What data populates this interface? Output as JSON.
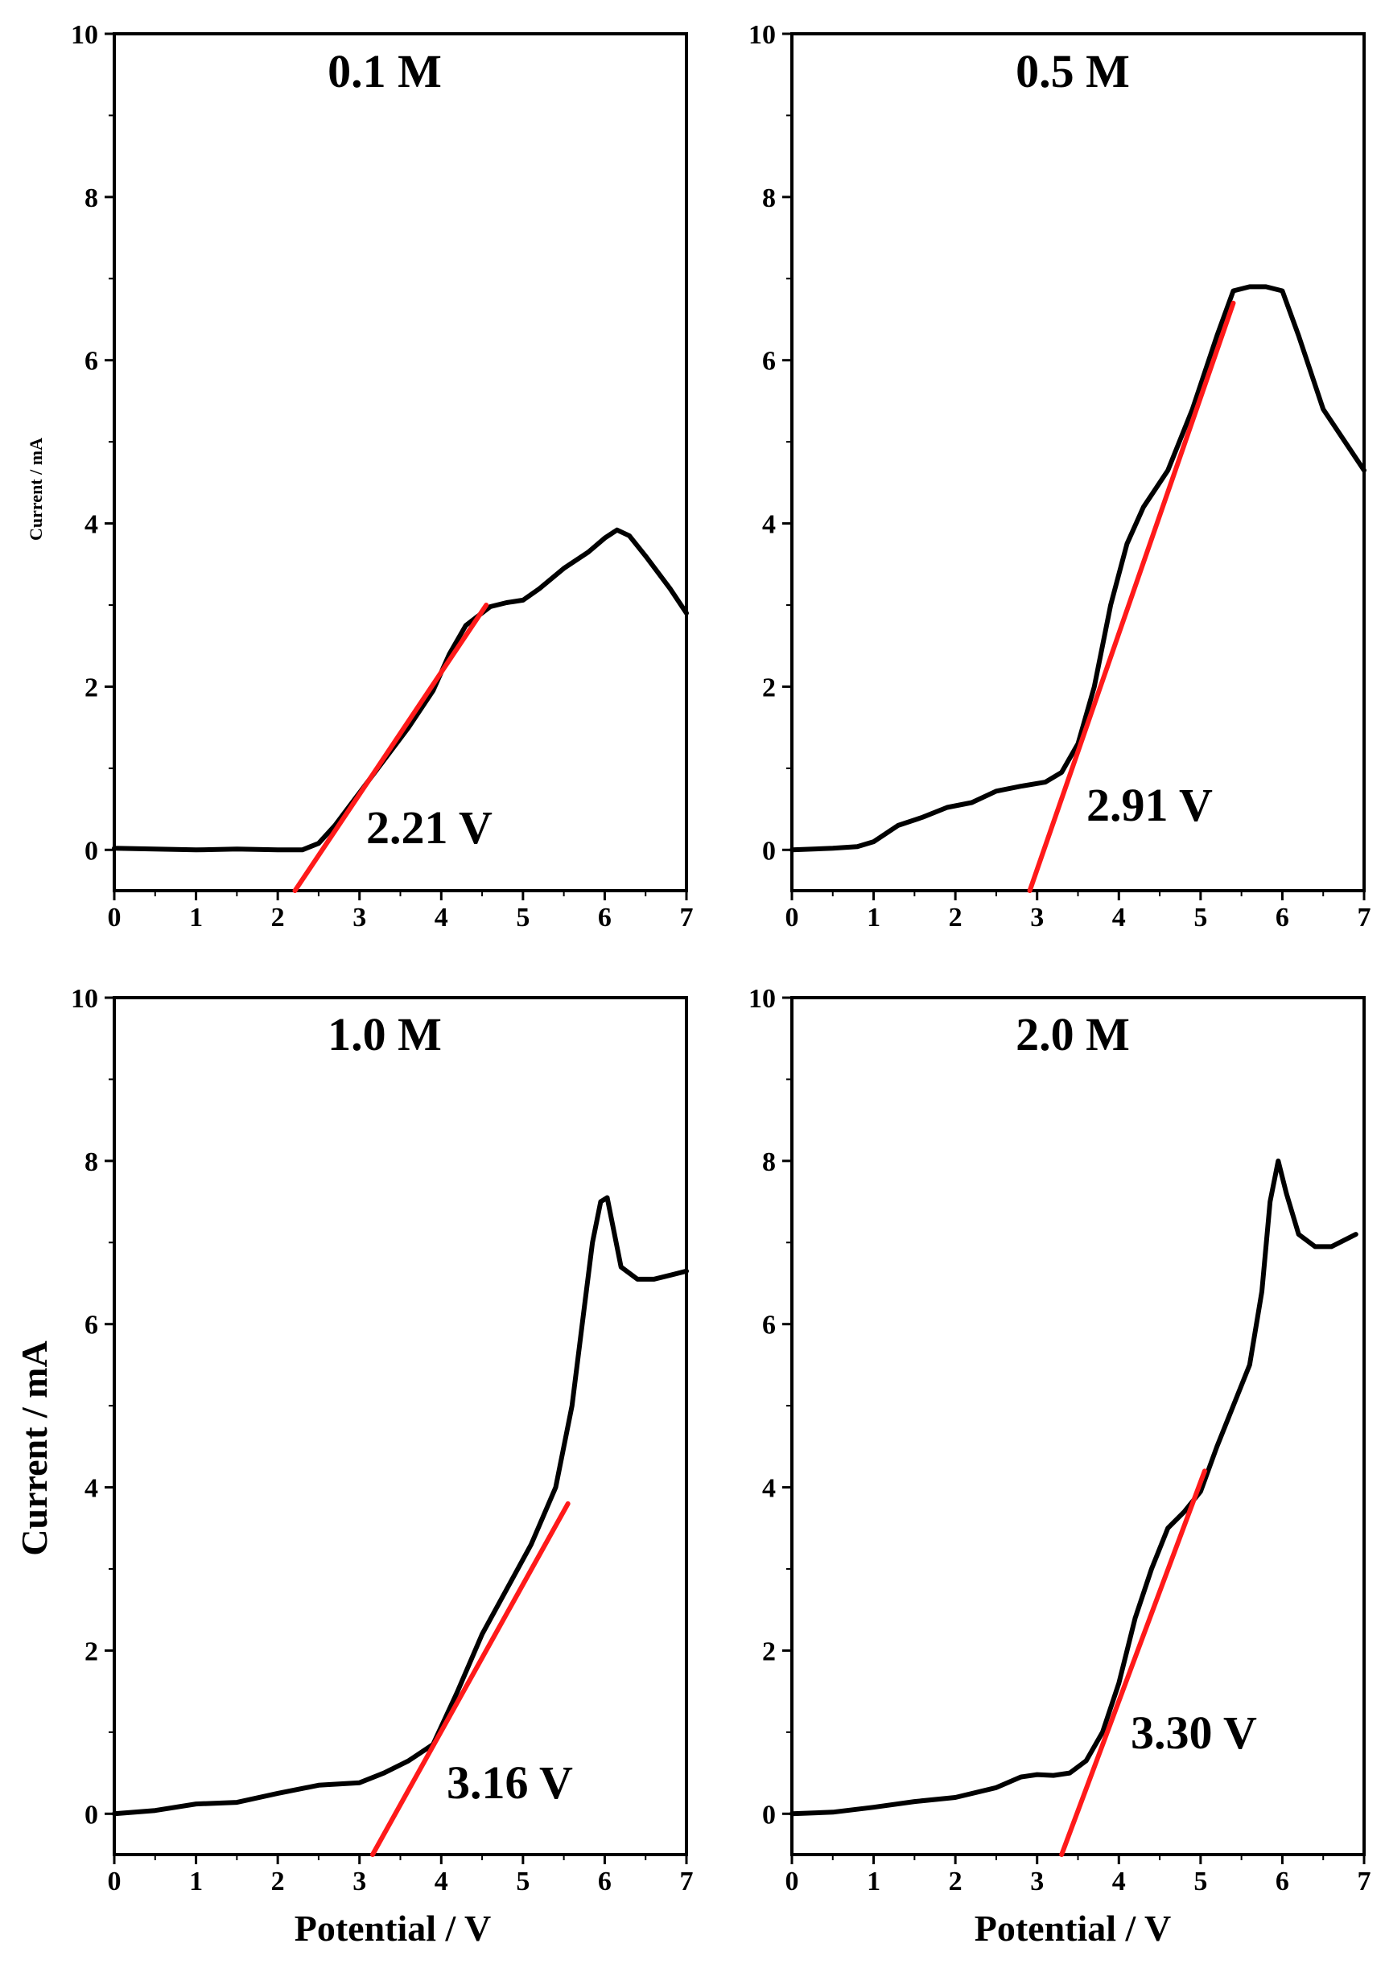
{
  "figure": {
    "xlabel": "Potential / V",
    "ylabel": "Current / mA",
    "ylabel_small": "Current / mA"
  },
  "colors": {
    "curve": "#000000",
    "fit": "#ff1a1a"
  },
  "chart_data": [
    {
      "type": "line",
      "title": "0.1 M",
      "annotation": "2.21 V",
      "xlim": [
        0,
        7
      ],
      "ylim": [
        -0.5,
        10
      ],
      "xticks": [
        "0",
        "1",
        "2",
        "3",
        "4",
        "5",
        "6",
        "7"
      ],
      "yticks": [
        "0",
        "2",
        "4",
        "6",
        "8",
        "10"
      ],
      "series": [
        {
          "name": "current",
          "x": [
            0,
            0.5,
            1,
            1.5,
            2,
            2.3,
            2.5,
            2.7,
            3,
            3.3,
            3.6,
            3.9,
            4.1,
            4.3,
            4.6,
            4.8,
            5.0,
            5.2,
            5.5,
            5.8,
            6.0,
            6.15,
            6.3,
            6.5,
            6.8,
            7.0
          ],
          "y": [
            0.02,
            0.01,
            0.0,
            0.01,
            0.0,
            0.0,
            0.08,
            0.3,
            0.7,
            1.1,
            1.5,
            1.95,
            2.4,
            2.75,
            2.98,
            3.03,
            3.06,
            3.2,
            3.45,
            3.65,
            3.82,
            3.92,
            3.85,
            3.6,
            3.2,
            2.9
          ]
        },
        {
          "name": "tangent",
          "x": [
            2.21,
            4.55
          ],
          "y": [
            -0.5,
            3.0
          ]
        }
      ]
    },
    {
      "type": "line",
      "title": "0.5 M",
      "annotation": "2.91 V",
      "xlim": [
        0,
        7
      ],
      "ylim": [
        -0.5,
        10
      ],
      "xticks": [
        "0",
        "1",
        "2",
        "3",
        "4",
        "5",
        "6",
        "7"
      ],
      "yticks": [
        "0",
        "2",
        "4",
        "6",
        "8",
        "10"
      ],
      "series": [
        {
          "name": "current",
          "x": [
            0,
            0.5,
            0.8,
            1.0,
            1.3,
            1.6,
            1.9,
            2.2,
            2.5,
            2.8,
            3.1,
            3.3,
            3.5,
            3.7,
            3.9,
            4.1,
            4.3,
            4.6,
            4.9,
            5.2,
            5.4,
            5.6,
            5.8,
            6.0,
            6.2,
            6.5,
            6.8,
            7.0
          ],
          "y": [
            0.0,
            0.02,
            0.04,
            0.1,
            0.3,
            0.4,
            0.52,
            0.58,
            0.72,
            0.78,
            0.83,
            0.95,
            1.3,
            2.0,
            3.0,
            3.75,
            4.2,
            4.65,
            5.4,
            6.3,
            6.85,
            6.9,
            6.9,
            6.85,
            6.3,
            5.4,
            4.95,
            4.65
          ]
        },
        {
          "name": "tangent",
          "x": [
            2.91,
            5.4
          ],
          "y": [
            -0.5,
            6.7
          ]
        }
      ]
    },
    {
      "type": "line",
      "title": "1.0 M",
      "annotation": "3.16 V",
      "xlim": [
        0,
        7
      ],
      "ylim": [
        -0.5,
        10
      ],
      "xticks": [
        "0",
        "1",
        "2",
        "3",
        "4",
        "5",
        "6",
        "7"
      ],
      "yticks": [
        "0",
        "2",
        "4",
        "6",
        "8",
        "10"
      ],
      "series": [
        {
          "name": "current",
          "x": [
            0,
            0.5,
            1.0,
            1.5,
            2.0,
            2.5,
            3.0,
            3.3,
            3.6,
            3.9,
            4.2,
            4.5,
            4.8,
            5.1,
            5.4,
            5.6,
            5.75,
            5.85,
            5.95,
            6.03,
            6.1,
            6.2,
            6.4,
            6.6,
            6.8,
            7.0
          ],
          "y": [
            0.0,
            0.04,
            0.12,
            0.14,
            0.25,
            0.35,
            0.38,
            0.5,
            0.65,
            0.85,
            1.5,
            2.2,
            2.75,
            3.3,
            4.0,
            5.0,
            6.2,
            7.0,
            7.5,
            7.55,
            7.2,
            6.7,
            6.55,
            6.55,
            6.6,
            6.65
          ]
        },
        {
          "name": "tangent",
          "x": [
            3.16,
            5.55
          ],
          "y": [
            -0.5,
            3.8
          ]
        }
      ]
    },
    {
      "type": "line",
      "title": "2.0 M",
      "annotation": "3.30 V",
      "xlim": [
        0,
        7
      ],
      "ylim": [
        -0.5,
        10
      ],
      "xticks": [
        "0",
        "1",
        "2",
        "3",
        "4",
        "5",
        "6",
        "7"
      ],
      "yticks": [
        "0",
        "2",
        "4",
        "6",
        "8",
        "10"
      ],
      "series": [
        {
          "name": "current",
          "x": [
            0,
            0.5,
            1.0,
            1.5,
            2.0,
            2.5,
            2.8,
            3.0,
            3.2,
            3.4,
            3.6,
            3.8,
            4.0,
            4.2,
            4.4,
            4.6,
            4.8,
            5.0,
            5.2,
            5.4,
            5.6,
            5.75,
            5.85,
            5.95,
            6.05,
            6.2,
            6.4,
            6.6,
            6.8,
            6.9
          ],
          "y": [
            0.0,
            0.02,
            0.08,
            0.15,
            0.2,
            0.32,
            0.45,
            0.48,
            0.47,
            0.5,
            0.65,
            1.0,
            1.6,
            2.4,
            3.0,
            3.5,
            3.7,
            3.95,
            4.5,
            5.0,
            5.5,
            6.4,
            7.5,
            8.0,
            7.6,
            7.1,
            6.95,
            6.95,
            7.05,
            7.1
          ]
        },
        {
          "name": "tangent",
          "x": [
            3.3,
            5.05
          ],
          "y": [
            -0.5,
            4.2
          ]
        }
      ]
    }
  ]
}
